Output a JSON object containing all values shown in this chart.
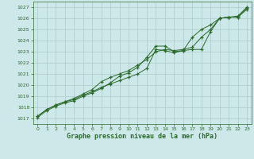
{
  "x": [
    0,
    1,
    2,
    3,
    4,
    5,
    6,
    7,
    8,
    9,
    10,
    11,
    12,
    13,
    14,
    15,
    16,
    17,
    18,
    19,
    20,
    21,
    22,
    23
  ],
  "series1": [
    1017.2,
    1017.8,
    1018.2,
    1018.5,
    1018.7,
    1019.1,
    1019.4,
    1019.8,
    1020.1,
    1020.4,
    1020.7,
    1021.0,
    1021.5,
    1023.2,
    1023.1,
    1022.9,
    1023.1,
    1023.2,
    1023.2,
    1024.8,
    1026.0,
    1026.1,
    1026.1,
    1026.8
  ],
  "series2": [
    1017.2,
    1017.8,
    1018.2,
    1018.5,
    1018.8,
    1019.2,
    1019.6,
    1020.3,
    1020.7,
    1021.0,
    1021.3,
    1021.8,
    1022.3,
    1023.0,
    1023.2,
    1023.1,
    1023.2,
    1023.4,
    1024.3,
    1025.0,
    1026.0,
    1026.1,
    1026.1,
    1026.9
  ],
  "series3": [
    1017.1,
    1017.7,
    1018.1,
    1018.4,
    1018.6,
    1019.0,
    1019.3,
    1019.7,
    1020.2,
    1020.8,
    1021.1,
    1021.6,
    1022.5,
    1023.5,
    1023.5,
    1023.0,
    1023.1,
    1024.3,
    1025.0,
    1025.4,
    1026.0,
    1026.1,
    1026.2,
    1027.0
  ],
  "line_color": "#2d6a2d",
  "bg_color": "#cce8e8",
  "grid_color": "#aacccc",
  "ylabel_ticks": [
    1017,
    1018,
    1019,
    1020,
    1021,
    1022,
    1023,
    1024,
    1025,
    1026,
    1027
  ],
  "xlabel": "Graphe pression niveau de la mer (hPa)",
  "ylim": [
    1016.5,
    1027.5
  ],
  "xlim": [
    -0.5,
    23.5
  ]
}
